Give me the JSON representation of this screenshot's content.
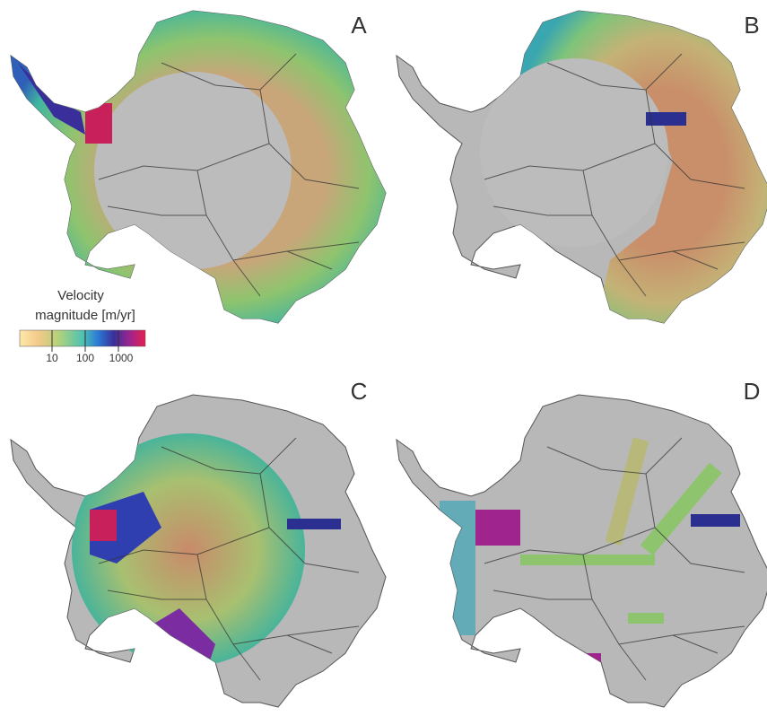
{
  "panels": [
    {
      "label": "A"
    },
    {
      "label": "B"
    },
    {
      "label": "C"
    },
    {
      "label": "D"
    }
  ],
  "legend": {
    "title_line1": "Velocity",
    "title_line2": "magnitude [m/yr]",
    "ticks": [
      "10",
      "100",
      "1000"
    ]
  }
}
